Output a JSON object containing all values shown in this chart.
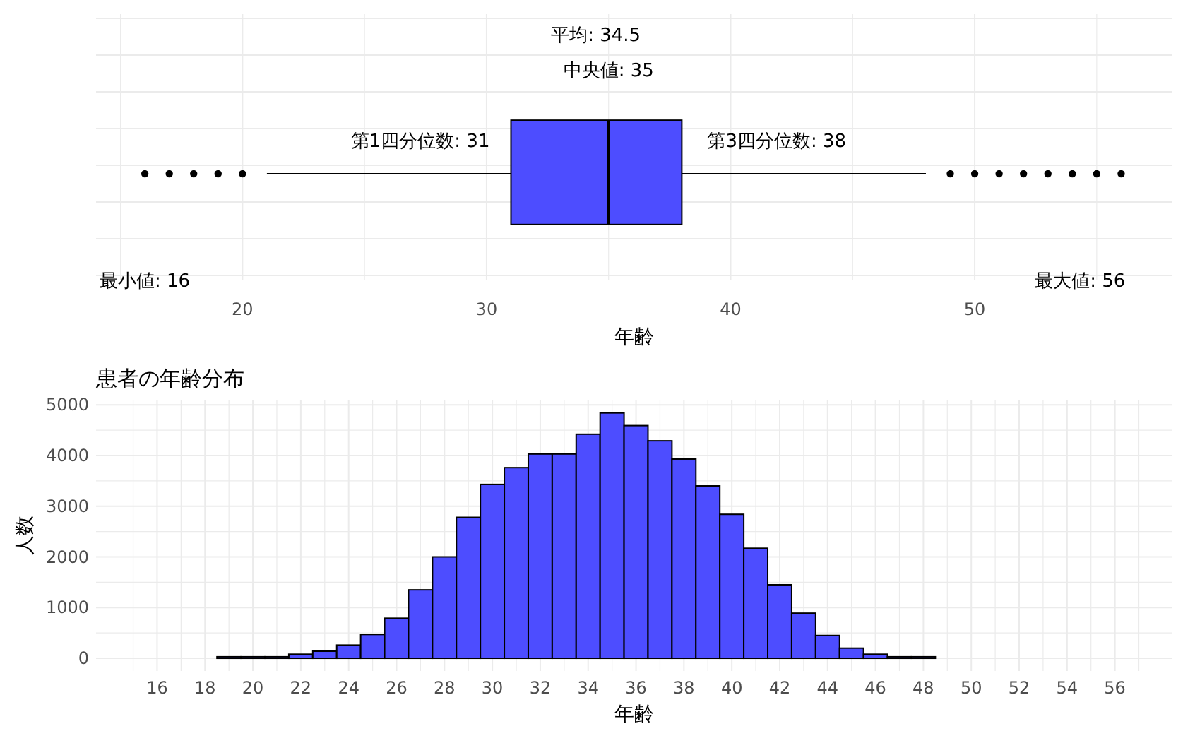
{
  "chart_data": [
    {
      "type": "box",
      "orientation": "horizontal",
      "categories": [
        null
      ],
      "color": "#4d4dff",
      "boxes": [
        {
          "low": 21,
          "q1": 31,
          "median": 35,
          "q3": 38,
          "high": 48,
          "outliers": [
            16,
            17,
            18,
            19,
            20,
            49,
            50,
            51,
            52,
            53,
            54,
            55,
            56
          ]
        }
      ],
      "xlabel": "年齢",
      "xlim": [
        14,
        58.1
      ],
      "xticks": [
        20,
        30,
        40,
        50
      ],
      "tick_labels": "x",
      "grid": true,
      "annotations": [
        "平均: 34.5",
        "中央値: 35",
        "第1四分位数: 31",
        "第3四分位数: 38",
        "最小値: 16",
        "最大値: 56"
      ]
    },
    {
      "type": "histogram",
      "title": "患者の年齢分布",
      "xlabel": "年齢",
      "ylabel": "人数",
      "color": "#4d4dff",
      "grid": true,
      "bins": [
        15.5,
        16.5,
        17.5,
        18.5,
        19.5,
        20.5,
        21.5,
        22.5,
        23.5,
        24.5,
        25.5,
        26.5,
        27.5,
        28.5,
        29.5,
        30.5,
        31.5,
        32.5,
        33.5,
        34.5,
        35.5,
        36.5,
        37.5,
        38.5,
        39.5,
        40.5,
        41.5,
        42.5,
        43.5,
        44.5,
        45.5,
        46.5,
        47.5,
        48.5,
        49.5,
        50.5,
        51.5,
        52.5,
        53.5,
        54.5,
        55.5,
        56.5
      ],
      "values": [
        0,
        0,
        0,
        30,
        30,
        30,
        80,
        140,
        260,
        470,
        790,
        1350,
        2000,
        2780,
        3430,
        3760,
        4030,
        4030,
        4420,
        4840,
        4590,
        4290,
        3930,
        3400,
        2840,
        2170,
        1450,
        890,
        450,
        200,
        80,
        30,
        30,
        0,
        0,
        0,
        0,
        0,
        0,
        0,
        0
      ],
      "xlim": [
        13.45,
        58.4
      ],
      "xticks": [
        16,
        18,
        20,
        22,
        24,
        26,
        28,
        30,
        32,
        34,
        36,
        38,
        40,
        42,
        44,
        46,
        48,
        50,
        52,
        54,
        56
      ],
      "ylim": [
        -250,
        5100
      ],
      "yticks": [
        0,
        1000,
        2000,
        3000,
        4000,
        5000
      ]
    }
  ]
}
